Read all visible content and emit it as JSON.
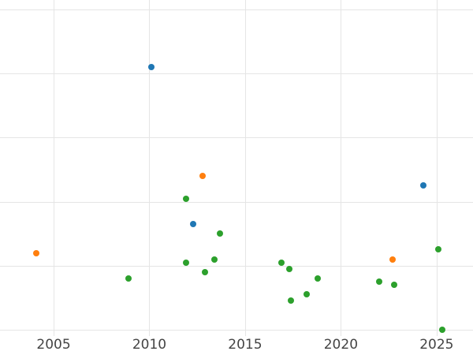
{
  "chart_data": {
    "type": "scatter",
    "title": "",
    "xlabel": "",
    "ylabel": "",
    "legend": "none",
    "grid": true,
    "background": "#ffffff",
    "gridline_color": "#e5e5e5",
    "tick_label_color": "#444444",
    "xlim": [
      2002.2,
      2026.9
    ],
    "ylim": [
      -0.1,
      5.15
    ],
    "x_ticks": [
      2005,
      2010,
      2015,
      2020,
      2025
    ],
    "x_gridlines": [
      2005,
      2010,
      2015,
      2020,
      2025
    ],
    "y_gridlines": [
      0,
      1,
      2,
      3,
      4,
      5
    ],
    "series": [
      {
        "name": "blue",
        "color": "#1f77b4",
        "points": [
          [
            2010.1,
            4.1
          ],
          [
            2012.3,
            1.65
          ],
          [
            2024.3,
            2.25
          ]
        ]
      },
      {
        "name": "orange",
        "color": "#ff7f0e",
        "points": [
          [
            2004.1,
            1.2
          ],
          [
            2012.8,
            2.4
          ],
          [
            2022.7,
            1.1
          ]
        ]
      },
      {
        "name": "green",
        "color": "#2ca02c",
        "points": [
          [
            2008.9,
            0.8
          ],
          [
            2011.9,
            2.05
          ],
          [
            2011.9,
            1.05
          ],
          [
            2012.9,
            0.9
          ],
          [
            2013.4,
            1.1
          ],
          [
            2013.7,
            1.5
          ],
          [
            2016.9,
            1.05
          ],
          [
            2017.3,
            0.95
          ],
          [
            2017.4,
            0.45
          ],
          [
            2018.2,
            0.55
          ],
          [
            2018.8,
            0.8
          ],
          [
            2022.0,
            0.75
          ],
          [
            2022.8,
            0.7
          ],
          [
            2025.1,
            1.25
          ],
          [
            2025.3,
            0.0
          ]
        ]
      }
    ]
  }
}
